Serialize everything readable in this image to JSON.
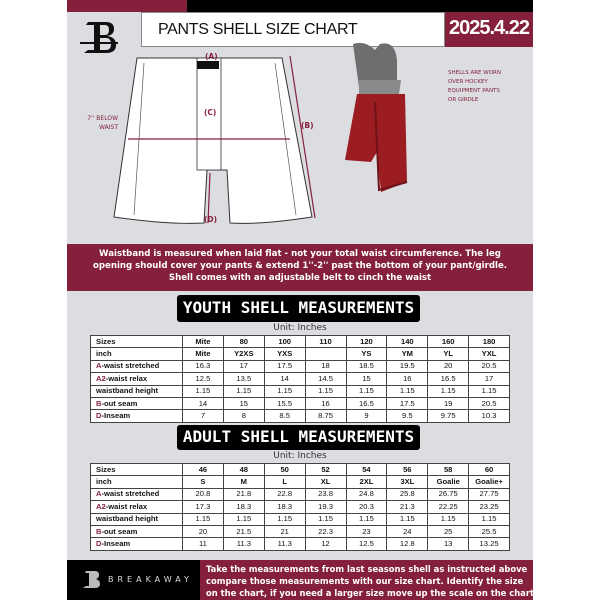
{
  "header": {
    "title": "PANTS SHELL SIZE CHART",
    "date": "2025.4.22",
    "logo_text": "B"
  },
  "diagram": {
    "label_a": "(A)",
    "label_b": "(B)",
    "label_c": "(C)",
    "label_d": "(D)",
    "below_waist_note": [
      "7'' BELOW",
      "WAIST"
    ],
    "photo_note": [
      "SHELLS ARE WORN",
      "OVER HOCKEY",
      "EQUIPMENT PANTS",
      "OR GIRDLE"
    ]
  },
  "info_band": [
    "Waistband is measured when laid flat - not your total waist circumference. The leg",
    "opening should cover your pants & extend 1''-2'' past the bottom of your pant/girdle.",
    "Shell comes with an adjustable belt to cinch the waist"
  ],
  "youth": {
    "heading": "YOUTH SHELL MEASUREMENTS",
    "unit": "Unit: Inches",
    "rows": [
      {
        "prefix": "",
        "label": "Sizes",
        "values": [
          "Mite",
          "80",
          "100",
          "110",
          "120",
          "140",
          "160",
          "180"
        ]
      },
      {
        "prefix": "",
        "label": "inch",
        "values": [
          "Mite",
          "Y2XS",
          "YXS",
          "",
          "YS",
          "YM",
          "YL",
          "YXL"
        ]
      },
      {
        "prefix": "A",
        "label": "-waist stretched",
        "values": [
          "16.3",
          "17",
          "17.5",
          "18",
          "18.5",
          "19.5",
          "20",
          "20.5"
        ]
      },
      {
        "prefix": "A2",
        "label": "-waist relax",
        "values": [
          "12.5",
          "13.5",
          "14",
          "14.5",
          "15",
          "16",
          "16.5",
          "17"
        ]
      },
      {
        "prefix": "",
        "label": "waistband height",
        "values": [
          "1.15",
          "1.15",
          "1.15",
          "1.15",
          "1.15",
          "1.15",
          "1.15",
          "1.15"
        ]
      },
      {
        "prefix": "B",
        "label": "-out seam",
        "values": [
          "14",
          "15",
          "15.5",
          "16",
          "16.5",
          "17.5",
          "19",
          "20.5"
        ]
      },
      {
        "prefix": "D",
        "label": "-Inseam",
        "values": [
          "7",
          "8",
          "8.5",
          "8.75",
          "9",
          "9.5",
          "9.75",
          "10.3"
        ]
      }
    ]
  },
  "adult": {
    "heading": "ADULT SHELL MEASUREMENTS",
    "unit": "Unit: Inches",
    "rows": [
      {
        "prefix": "",
        "label": "Sizes",
        "values": [
          "46",
          "48",
          "50",
          "52",
          "54",
          "56",
          "58",
          "60"
        ]
      },
      {
        "prefix": "",
        "label": "inch",
        "values": [
          "S",
          "M",
          "L",
          "XL",
          "2XL",
          "3XL",
          "Goalie",
          "Goalie+"
        ]
      },
      {
        "prefix": "A",
        "label": "-waist stretched",
        "values": [
          "20.8",
          "21.8",
          "22.8",
          "23.8",
          "24.8",
          "25.8",
          "26.75",
          "27.75"
        ]
      },
      {
        "prefix": "A2",
        "label": "-waist relax",
        "values": [
          "17.3",
          "18.3",
          "18.3",
          "19.3",
          "20.3",
          "21.3",
          "22.25",
          "23.25"
        ]
      },
      {
        "prefix": "",
        "label": "waistband height",
        "values": [
          "1.15",
          "1.15",
          "1.15",
          "1.15",
          "1.15",
          "1.15",
          "1.15",
          "1.15"
        ]
      },
      {
        "prefix": "B",
        "label": "-out seam",
        "values": [
          "20",
          "21.5",
          "21",
          "22.3",
          "23",
          "24",
          "25",
          "25.5"
        ]
      },
      {
        "prefix": "D",
        "label": "-Inseam",
        "values": [
          "11",
          "11.3",
          "11.3",
          "12",
          "12.5",
          "12.8",
          "13",
          "13.25"
        ]
      }
    ]
  },
  "footer": {
    "brand": "BREAKAWAY",
    "text": [
      "Take the measurements from last seasons shell as instructed above",
      "compare those measurements  with our size chart. Identify the size",
      "on the chart, if you need a larger size move up the scale on the chart"
    ]
  },
  "colors": {
    "accent": "#84203b",
    "background": "#dcdde1"
  }
}
